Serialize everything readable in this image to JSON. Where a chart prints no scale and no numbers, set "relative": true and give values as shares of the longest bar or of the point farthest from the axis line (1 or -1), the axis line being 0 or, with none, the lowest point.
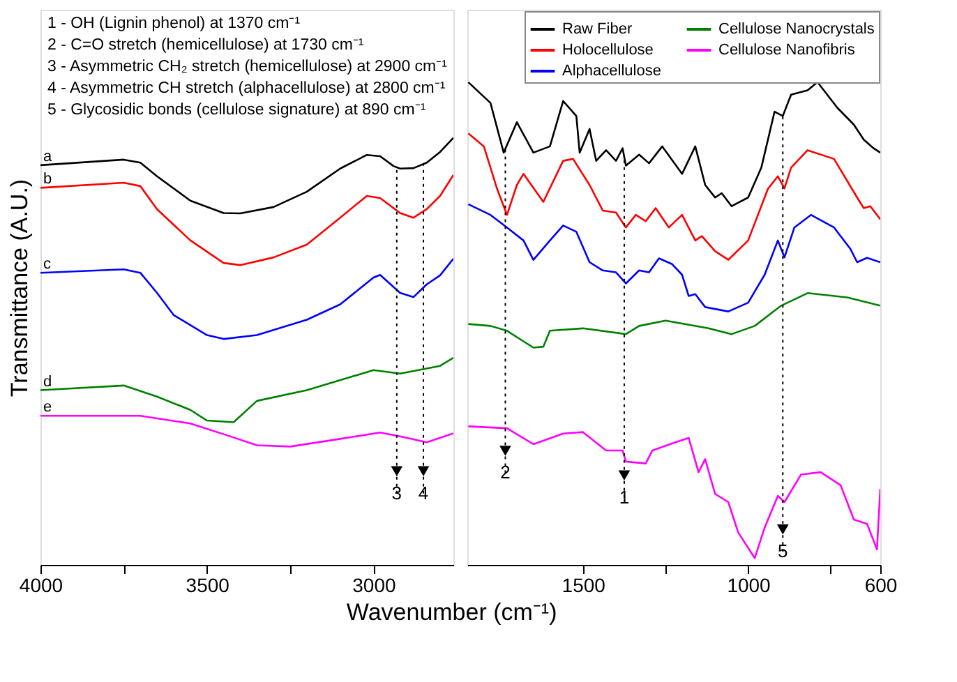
{
  "chart_data": [
    {
      "type": "line",
      "relative": true,
      "xlim": [
        4000,
        2760
      ],
      "xticks": [
        4000,
        {
          "value": 3750,
          "label": null
        },
        3500,
        {
          "value": 3250,
          "label": null
        },
        3000
      ],
      "xlabel": "Wavenumber (cm⁻¹)",
      "ylabel": "Transmittance (A.U.)",
      "tick_labels": "x",
      "grid": false,
      "legend": false,
      "line_style": "solid",
      "marker": "none",
      "series": [
        {
          "color": "#000000",
          "x": [
            4000,
            3750,
            3700,
            3650,
            3550,
            3450,
            3400,
            3300,
            3200,
            3100,
            3020,
            2980,
            2940,
            2920,
            2880,
            2840,
            2800,
            2760
          ],
          "values": [
            0.936,
            0.949,
            0.942,
            0.91,
            0.853,
            0.824,
            0.823,
            0.838,
            0.874,
            0.928,
            0.96,
            0.957,
            0.934,
            0.928,
            0.929,
            0.942,
            0.967,
            1.0
          ]
        },
        {
          "color": "#ff0000",
          "x": [
            4000,
            3750,
            3700,
            3650,
            3550,
            3450,
            3400,
            3300,
            3200,
            3100,
            3020,
            2980,
            2920,
            2880,
            2840,
            2800,
            2760
          ],
          "values": [
            0.883,
            0.895,
            0.887,
            0.833,
            0.76,
            0.707,
            0.702,
            0.72,
            0.75,
            0.813,
            0.864,
            0.859,
            0.824,
            0.813,
            0.833,
            0.864,
            0.913
          ]
        },
        {
          "color": "#0000ff",
          "x": [
            4000,
            3750,
            3700,
            3650,
            3600,
            3500,
            3450,
            3350,
            3200,
            3100,
            3000,
            2980,
            2920,
            2880,
            2840,
            2800,
            2760
          ],
          "values": [
            0.684,
            0.692,
            0.684,
            0.637,
            0.585,
            0.538,
            0.529,
            0.538,
            0.574,
            0.61,
            0.673,
            0.679,
            0.637,
            0.627,
            0.657,
            0.678,
            0.717
          ]
        },
        {
          "color": "#008000",
          "x": [
            4000,
            3750,
            3650,
            3550,
            3500,
            3420,
            3350,
            3200,
            3000,
            2920,
            2800,
            2760
          ],
          "values": [
            0.409,
            0.42,
            0.394,
            0.363,
            0.338,
            0.334,
            0.384,
            0.409,
            0.456,
            0.448,
            0.466,
            0.485
          ]
        },
        {
          "color": "#ff00ff",
          "x": [
            4000,
            3700,
            3550,
            3450,
            3350,
            3250,
            3100,
            2980,
            2920,
            2840,
            2760
          ],
          "values": [
            0.349,
            0.349,
            0.331,
            0.306,
            0.28,
            0.277,
            0.295,
            0.31,
            0.301,
            0.287,
            0.308
          ]
        }
      ],
      "annotations": [
        "1 - OH (Lignin phenol) at 1370 cm⁻¹",
        "2 - C=O stretch (hemicellulose) at 1730 cm⁻¹",
        "3 - Asymmetric CH₂ stretch (hemicellulose) at 2900 cm⁻¹",
        "4 - Asymmetric CH stretch (alphacellulose) at 2800 cm⁻¹",
        "5 - Glycosidic bonds (cellulose signature) at 890 cm⁻¹",
        {
          "text": "a",
          "x": 4000,
          "y": 0.936
        },
        {
          "text": "b",
          "x": 4000,
          "y": 0.883
        },
        {
          "text": "c",
          "x": 4000,
          "y": 0.684
        },
        {
          "text": "d",
          "x": 4000,
          "y": 0.409
        },
        {
          "text": "e",
          "x": 4000,
          "y": 0.349
        },
        {
          "text": "3",
          "x": 2930,
          "y": 0.167
        },
        {
          "text": "4",
          "x": 2850,
          "y": 0.167
        }
      ],
      "ref_lines": [
        {
          "axis": "x",
          "value": 2930,
          "color": "#000000",
          "line_style": "dotted"
        },
        {
          "axis": "x",
          "value": 2850,
          "color": "#000000",
          "line_style": "dotted"
        }
      ]
    },
    {
      "type": "line",
      "relative": true,
      "xlim": [
        1850,
        600
      ],
      "xticks": [
        1500,
        {
          "value": 1250,
          "label": null
        },
        1000,
        {
          "value": 750,
          "label": null
        },
        600
      ],
      "tick_labels": "x",
      "grid": false,
      "legend": "top right",
      "line_style": "solid",
      "marker": "none",
      "series": [
        {
          "name": "Raw Fiber",
          "color": "#000000",
          "x": [
            1847,
            1780,
            1740,
            1700,
            1650,
            1600,
            1560,
            1520,
            1510,
            1480,
            1460,
            1430,
            1400,
            1380,
            1370,
            1330,
            1300,
            1260,
            1200,
            1160,
            1130,
            1100,
            1080,
            1050,
            1000,
            960,
            920,
            895,
            870,
            820,
            790,
            730,
            680,
            650,
            620,
            600
          ],
          "values": [
            1.0,
            0.957,
            0.854,
            0.917,
            0.854,
            0.867,
            0.961,
            0.93,
            0.854,
            0.903,
            0.837,
            0.859,
            0.837,
            0.863,
            0.827,
            0.85,
            0.832,
            0.867,
            0.81,
            0.867,
            0.787,
            0.761,
            0.77,
            0.743,
            0.761,
            0.823,
            0.939,
            0.93,
            0.974,
            0.983,
            1.0,
            0.947,
            0.912,
            0.881,
            0.863,
            0.854
          ]
        },
        {
          "name": "Holocellulose",
          "color": "#ff0000",
          "x": [
            1847,
            1800,
            1760,
            1730,
            1700,
            1680,
            1620,
            1560,
            1530,
            1480,
            1440,
            1400,
            1370,
            1340,
            1310,
            1280,
            1240,
            1200,
            1160,
            1140,
            1100,
            1060,
            1000,
            940,
            910,
            890,
            870,
            820,
            740,
            670,
            650,
            630,
            600
          ],
          "values": [
            0.894,
            0.867,
            0.779,
            0.725,
            0.787,
            0.81,
            0.752,
            0.837,
            0.841,
            0.787,
            0.734,
            0.73,
            0.699,
            0.725,
            0.712,
            0.739,
            0.699,
            0.725,
            0.672,
            0.681,
            0.65,
            0.632,
            0.672,
            0.779,
            0.805,
            0.78,
            0.823,
            0.859,
            0.841,
            0.761,
            0.739,
            0.743,
            0.716
          ]
        },
        {
          "name": "Alphacellulose",
          "color": "#0000ff",
          "x": [
            1847,
            1780,
            1730,
            1680,
            1650,
            1600,
            1560,
            1520,
            1480,
            1440,
            1400,
            1370,
            1330,
            1300,
            1270,
            1230,
            1200,
            1180,
            1160,
            1130,
            1060,
            1000,
            950,
            910,
            890,
            860,
            810,
            740,
            690,
            670,
            640,
            600
          ],
          "values": [
            0.747,
            0.725,
            0.699,
            0.672,
            0.632,
            0.672,
            0.703,
            0.69,
            0.627,
            0.61,
            0.606,
            0.583,
            0.61,
            0.606,
            0.635,
            0.623,
            0.601,
            0.557,
            0.561,
            0.534,
            0.525,
            0.543,
            0.601,
            0.672,
            0.637,
            0.699,
            0.725,
            0.699,
            0.654,
            0.627,
            0.636,
            0.627
          ]
        },
        {
          "name": "Cellulose Nanocrystals",
          "color": "#008000",
          "x": [
            1847,
            1780,
            1730,
            1680,
            1650,
            1620,
            1600,
            1500,
            1370,
            1330,
            1250,
            1120,
            1050,
            980,
            900,
            820,
            700,
            600
          ],
          "values": [
            0.499,
            0.495,
            0.485,
            0.463,
            0.45,
            0.452,
            0.485,
            0.49,
            0.478,
            0.495,
            0.506,
            0.49,
            0.478,
            0.495,
            0.537,
            0.563,
            0.554,
            0.537
          ]
        },
        {
          "name": "Cellulose Nanofibris",
          "color": "#ff00ff",
          "x": [
            1847,
            1730,
            1650,
            1560,
            1500,
            1430,
            1380,
            1370,
            1310,
            1290,
            1220,
            1180,
            1150,
            1130,
            1100,
            1060,
            1030,
            980,
            950,
            910,
            890,
            840,
            780,
            720,
            680,
            640,
            610,
            600
          ],
          "values": [
            0.287,
            0.283,
            0.25,
            0.272,
            0.275,
            0.237,
            0.237,
            0.214,
            0.21,
            0.237,
            0.254,
            0.263,
            0.192,
            0.219,
            0.147,
            0.13,
            0.067,
            0.014,
            0.077,
            0.143,
            0.13,
            0.187,
            0.192,
            0.165,
            0.094,
            0.085,
            0.032,
            0.157
          ]
        }
      ],
      "annotations": [
        {
          "text": "2",
          "x": 1735,
          "y": 0.19
        },
        {
          "text": "1",
          "x": 1375,
          "y": 0.139
        },
        {
          "text": "5",
          "x": 895,
          "y": 0.027
        }
      ],
      "ref_lines": [
        {
          "axis": "x",
          "value": 1735,
          "color": "#000000",
          "line_style": "dotted"
        },
        {
          "axis": "x",
          "value": 1375,
          "color": "#000000",
          "line_style": "dotted"
        },
        {
          "axis": "x",
          "value": 895,
          "color": "#000000",
          "line_style": "dotted"
        }
      ]
    }
  ]
}
